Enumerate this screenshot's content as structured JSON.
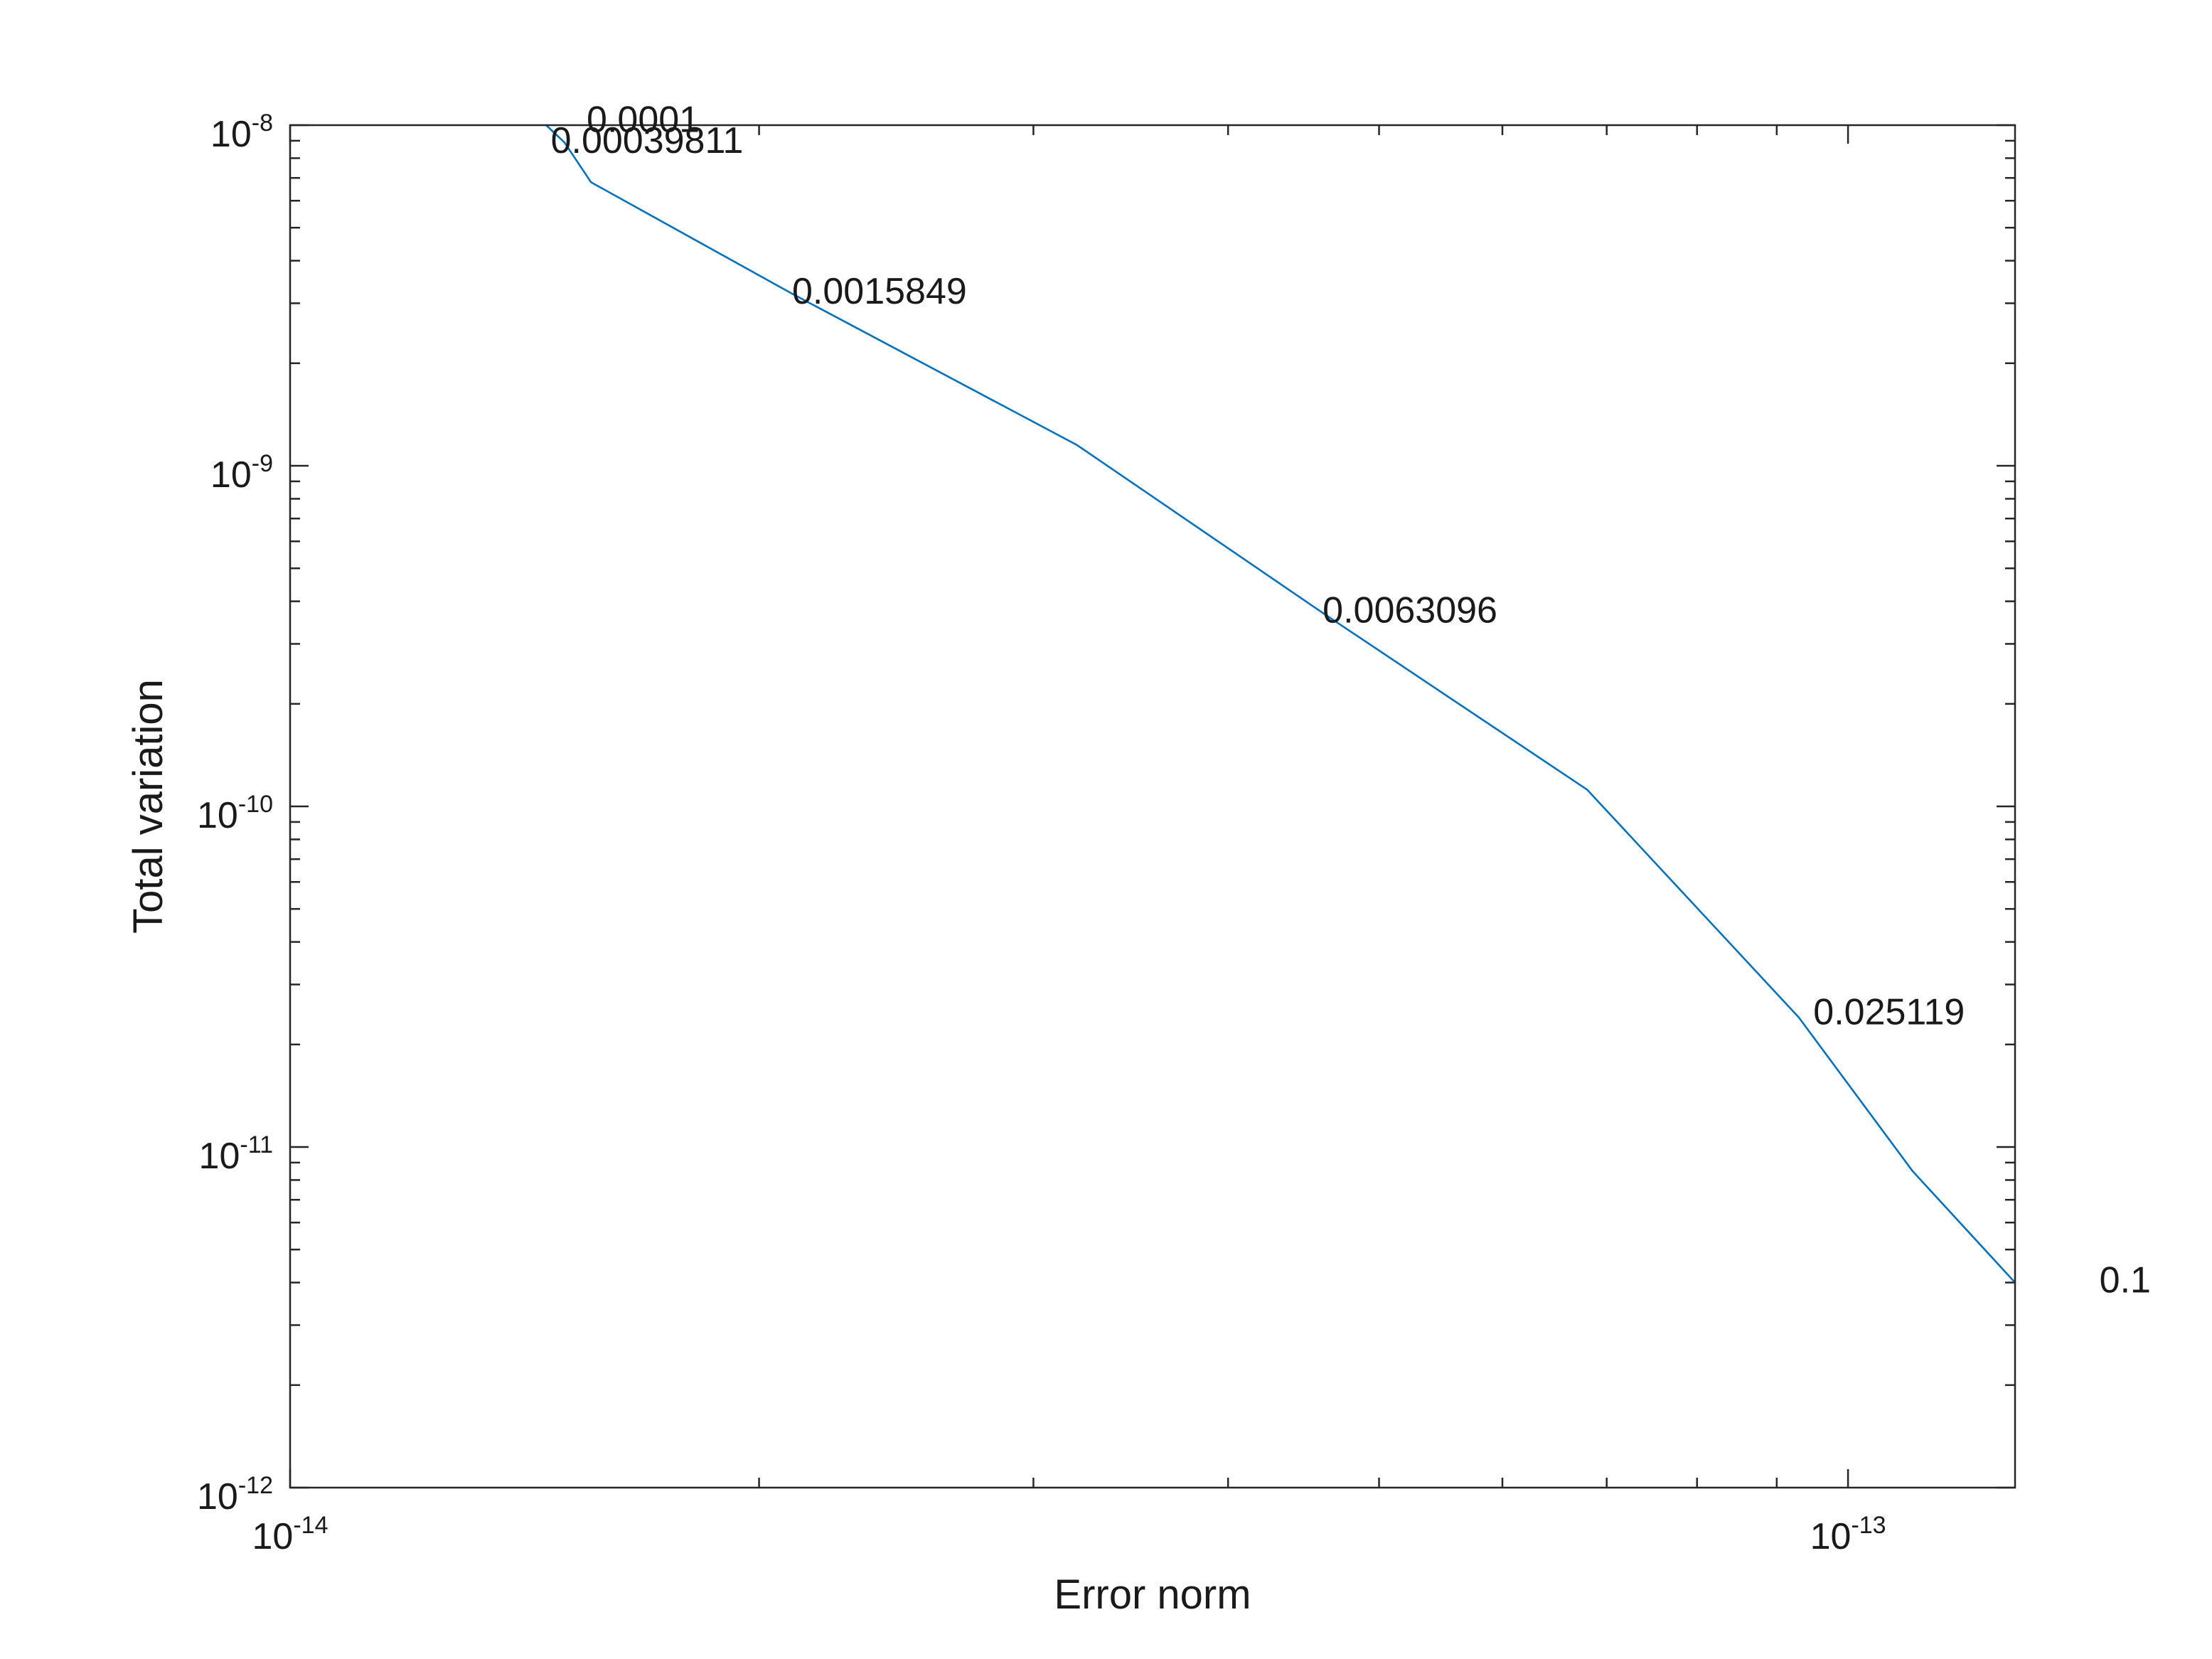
{
  "chart_data": {
    "type": "line",
    "title": "",
    "xlabel": "Error norm",
    "ylabel": "Total variation",
    "xscale": "log",
    "yscale": "log",
    "xlim": [
      1e-14,
      1.28e-13
    ],
    "ylim": [
      1e-12,
      1e-08
    ],
    "grid": false,
    "box": true,
    "line_color": "#0072BD",
    "x_ticks": [
      {
        "value": 1e-14,
        "base": "10",
        "exp": "-14"
      },
      {
        "value": 1e-13,
        "base": "10",
        "exp": "-13"
      }
    ],
    "y_ticks": [
      {
        "value": 1e-12,
        "base": "10",
        "exp": "-12"
      },
      {
        "value": 1e-11,
        "base": "10",
        "exp": "-11"
      },
      {
        "value": 1e-10,
        "base": "10",
        "exp": "-10"
      },
      {
        "value": 1e-09,
        "base": "10",
        "exp": "-9"
      },
      {
        "value": 1e-08,
        "base": "10",
        "exp": "-8"
      }
    ],
    "series": [
      {
        "x": [
          1.46e-14,
          1.5e-14,
          1.56e-14,
          2.1e-14,
          3.2e-14,
          4.6e-14,
          6.8e-14,
          9.3e-14,
          1.1e-13,
          1.28e-13
        ],
        "y": [
          1e-08,
          8.9e-09,
          6.8e-09,
          3.2e-09,
          1.15e-09,
          3.7e-10,
          1.12e-10,
          2.4e-11,
          8.5e-12,
          4e-12
        ]
      }
    ],
    "annotations": [
      {
        "text": "0.0001",
        "x": 1.55e-14,
        "y": 1.02e-08
      },
      {
        "text": "0.00039811",
        "x": 1.47e-14,
        "y": 8.85e-09
      },
      {
        "text": "0.0015849",
        "x": 2.1e-14,
        "y": 3.2e-09
      },
      {
        "text": "0.0063096",
        "x": 4.6e-14,
        "y": 3.7e-10
      },
      {
        "text": "0.025119",
        "x": 9.5e-14,
        "y": 2.45e-11
      },
      {
        "text": "0.1",
        "x": 1.45e-13,
        "y": 4e-12
      }
    ]
  }
}
